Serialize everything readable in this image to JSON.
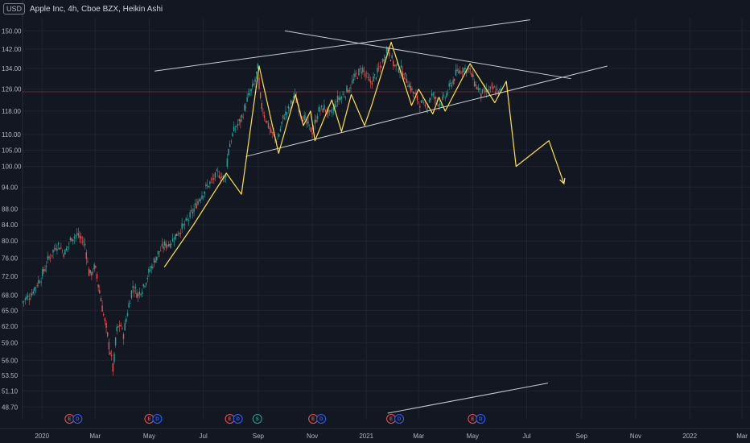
{
  "header": {
    "currency": "USD",
    "title": "Apple Inc, 4h, Cboe BZX, Heikin Ashi"
  },
  "colors": {
    "background": "#131722",
    "grid": "#1f2330",
    "up_candle": "#26a69a",
    "down_candle": "#ef5350",
    "trendline": "#c8cad1",
    "zigzag": "#ffe14d",
    "axis_text": "#b2b5be",
    "earnings_badge": "#ef5350",
    "dividend_badge": "#2962ff",
    "split_badge": "#26a69a"
  },
  "chart_data": {
    "type": "candlestick",
    "y_scale": "log",
    "y_ticks": [
      150.0,
      142.0,
      134.0,
      126.0,
      118.0,
      110.0,
      105.0,
      100.0,
      94.0,
      88.0,
      84.0,
      80.0,
      76.0,
      72.0,
      68.0,
      65.0,
      62.0,
      59.0,
      56.0,
      53.5,
      51.1,
      48.7
    ],
    "y_tick_labels": [
      "150.00",
      "142.00",
      "134.00",
      "126.00",
      "118.00",
      "110.00",
      "105.00",
      "100.00",
      "94.00",
      "88.00",
      "84.00",
      "80.00",
      "76.00",
      "72.00",
      "68.00",
      "65.00",
      "62.00",
      "59.00",
      "56.00",
      "53.50",
      "51.10",
      "48.70"
    ],
    "ylim": [
      47.0,
      156.0
    ],
    "x_ticks": [
      {
        "date": "2020-01-01",
        "label": "2020"
      },
      {
        "date": "2020-03-01",
        "label": "Mar"
      },
      {
        "date": "2020-05-01",
        "label": "May"
      },
      {
        "date": "2020-07-01",
        "label": "Jul"
      },
      {
        "date": "2020-09-01",
        "label": "Sep"
      },
      {
        "date": "2020-11-01",
        "label": "Nov"
      },
      {
        "date": "2021-01-01",
        "label": "2021"
      },
      {
        "date": "2021-03-01",
        "label": "Mar"
      },
      {
        "date": "2021-05-01",
        "label": "May"
      },
      {
        "date": "2021-07-01",
        "label": "Jul"
      },
      {
        "date": "2021-09-01",
        "label": "Sep"
      },
      {
        "date": "2021-11-01",
        "label": "Nov"
      },
      {
        "date": "2022-01-01",
        "label": "2022"
      },
      {
        "date": "2022-03-01",
        "label": "Mar"
      }
    ],
    "xlim": [
      "2019-12-10",
      "2022-03-10"
    ],
    "price_path": [
      [
        "2019-12-10",
        66.5
      ],
      [
        "2019-12-20",
        68.0
      ],
      [
        "2020-01-02",
        72.0
      ],
      [
        "2020-01-10",
        76.0
      ],
      [
        "2020-01-20",
        79.5
      ],
      [
        "2020-01-28",
        77.0
      ],
      [
        "2020-02-05",
        81.0
      ],
      [
        "2020-02-12",
        81.5
      ],
      [
        "2020-02-20",
        79.0
      ],
      [
        "2020-02-25",
        72.0
      ],
      [
        "2020-03-02",
        74.0
      ],
      [
        "2020-03-06",
        70.0
      ],
      [
        "2020-03-10",
        66.0
      ],
      [
        "2020-03-16",
        60.0
      ],
      [
        "2020-03-20",
        57.0
      ],
      [
        "2020-03-23",
        54.0
      ],
      [
        "2020-03-26",
        61.0
      ],
      [
        "2020-03-31",
        62.5
      ],
      [
        "2020-04-03",
        60.0
      ],
      [
        "2020-04-08",
        65.0
      ],
      [
        "2020-04-14",
        70.0
      ],
      [
        "2020-04-20",
        68.0
      ],
      [
        "2020-04-28",
        71.0
      ],
      [
        "2020-05-05",
        74.0
      ],
      [
        "2020-05-12",
        77.0
      ],
      [
        "2020-05-20",
        79.0
      ],
      [
        "2020-05-28",
        80.0
      ],
      [
        "2020-06-05",
        82.5
      ],
      [
        "2020-06-12",
        84.0
      ],
      [
        "2020-06-20",
        87.0
      ],
      [
        "2020-06-28",
        91.0
      ],
      [
        "2020-07-06",
        94.0
      ],
      [
        "2020-07-13",
        96.0
      ],
      [
        "2020-07-20",
        98.0
      ],
      [
        "2020-07-27",
        96.0
      ],
      [
        "2020-07-31",
        106.0
      ],
      [
        "2020-08-07",
        112.0
      ],
      [
        "2020-08-14",
        115.0
      ],
      [
        "2020-08-21",
        122.0
      ],
      [
        "2020-08-28",
        127.0
      ],
      [
        "2020-09-02",
        134.0
      ],
      [
        "2020-09-04",
        122.0
      ],
      [
        "2020-09-10",
        116.0
      ],
      [
        "2020-09-18",
        110.0
      ],
      [
        "2020-09-24",
        108.0
      ],
      [
        "2020-10-01",
        116.0
      ],
      [
        "2020-10-08",
        119.0
      ],
      [
        "2020-10-13",
        124.0
      ],
      [
        "2020-10-20",
        118.0
      ],
      [
        "2020-10-28",
        113.0
      ],
      [
        "2020-11-03",
        111.0
      ],
      [
        "2020-11-09",
        118.0
      ],
      [
        "2020-11-16",
        119.0
      ],
      [
        "2020-11-23",
        116.0
      ],
      [
        "2020-12-01",
        122.0
      ],
      [
        "2020-12-08",
        124.0
      ],
      [
        "2020-12-15",
        127.0
      ],
      [
        "2020-12-22",
        131.0
      ],
      [
        "2020-12-29",
        134.0
      ],
      [
        "2021-01-06",
        128.0
      ],
      [
        "2021-01-13",
        131.0
      ],
      [
        "2021-01-20",
        136.0
      ],
      [
        "2021-01-26",
        143.0
      ],
      [
        "2021-02-03",
        135.0
      ],
      [
        "2021-02-10",
        134.0
      ],
      [
        "2021-02-18",
        129.0
      ],
      [
        "2021-02-25",
        124.0
      ],
      [
        "2021-03-04",
        121.0
      ],
      [
        "2021-03-10",
        119.0
      ],
      [
        "2021-03-17",
        124.0
      ],
      [
        "2021-03-24",
        121.0
      ],
      [
        "2021-03-31",
        122.0
      ],
      [
        "2021-04-07",
        127.0
      ],
      [
        "2021-04-14",
        132.0
      ],
      [
        "2021-04-21",
        134.0
      ],
      [
        "2021-04-28",
        134.0
      ],
      [
        "2021-05-05",
        128.0
      ],
      [
        "2021-05-12",
        124.0
      ],
      [
        "2021-05-19",
        125.0
      ],
      [
        "2021-05-26",
        126.0
      ],
      [
        "2021-06-02",
        125.0
      ]
    ],
    "trendlines": [
      {
        "name": "upper-channel",
        "from": [
          "2020-05-07",
          133.0
        ],
        "to": [
          "2021-07-05",
          155.0
        ]
      },
      {
        "name": "descending-resistance",
        "from": [
          "2020-10-01",
          150.0
        ],
        "to": [
          "2021-08-20",
          130.0
        ]
      },
      {
        "name": "ascending-support",
        "from": [
          "2020-08-18",
          103.0
        ],
        "to": [
          "2021-09-30",
          135.0
        ]
      },
      {
        "name": "lower-indicator-line",
        "from": [
          "2021-01-25",
          47.8
        ],
        "to": [
          "2021-07-25",
          52.3
        ]
      }
    ],
    "zigzag": [
      [
        "2020-05-18",
        74.0
      ],
      [
        "2020-06-20",
        84.0
      ],
      [
        "2020-07-27",
        98.0
      ],
      [
        "2020-08-13",
        92.0
      ],
      [
        "2020-09-02",
        135.0
      ],
      [
        "2020-09-24",
        104.0
      ],
      [
        "2020-10-13",
        124.0
      ],
      [
        "2020-10-22",
        113.0
      ],
      [
        "2020-10-30",
        118.0
      ],
      [
        "2020-11-04",
        108.0
      ],
      [
        "2020-11-23",
        122.0
      ],
      [
        "2020-12-04",
        111.0
      ],
      [
        "2020-12-15",
        124.0
      ],
      [
        "2020-12-30",
        113.0
      ],
      [
        "2021-01-07",
        120.0
      ],
      [
        "2021-01-29",
        145.0
      ],
      [
        "2021-02-21",
        120.0
      ],
      [
        "2021-03-01",
        126.0
      ],
      [
        "2021-03-17",
        117.0
      ],
      [
        "2021-03-24",
        123.0
      ],
      [
        "2021-03-31",
        118.0
      ],
      [
        "2021-04-28",
        136.0
      ],
      [
        "2021-05-26",
        121.0
      ],
      [
        "2021-06-08",
        129.0
      ],
      [
        "2021-06-19",
        100.0
      ],
      [
        "2021-07-26",
        108.0
      ],
      [
        "2021-08-12",
        95.0
      ]
    ],
    "events": [
      {
        "date": "2020-02-01",
        "badges": [
          "E",
          "D"
        ]
      },
      {
        "date": "2020-05-01",
        "badges": [
          "E",
          "D"
        ]
      },
      {
        "date": "2020-07-31",
        "badges": [
          "E",
          "D"
        ]
      },
      {
        "date": "2020-08-31",
        "badges": [
          "S"
        ]
      },
      {
        "date": "2020-11-02",
        "badges": [
          "E",
          "D"
        ]
      },
      {
        "date": "2021-01-29",
        "badges": [
          "E",
          "D"
        ]
      },
      {
        "date": "2021-05-01",
        "badges": [
          "E",
          "D"
        ]
      }
    ]
  }
}
